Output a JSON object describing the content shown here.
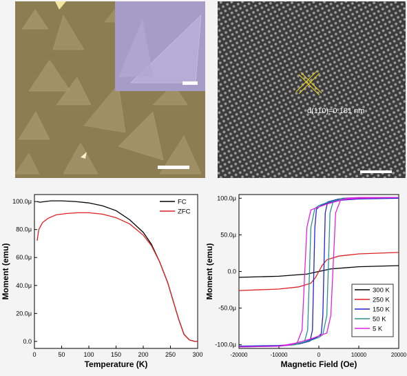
{
  "images": {
    "optical": {
      "name": "optical-micrograph"
    },
    "hrtem": {
      "name": "hrtem-lattice-image",
      "annotation": "d(110)=0.181 nm"
    }
  },
  "chart_data": [
    {
      "type": "line",
      "xlabel": "Temperature (K)",
      "ylabel": "Moment (emu)",
      "xlim": [
        0,
        300
      ],
      "ylim": [
        -5,
        105
      ],
      "xticks": [
        0,
        50,
        100,
        150,
        200,
        250,
        300
      ],
      "yticks": [
        0,
        20,
        40,
        60,
        80,
        100
      ],
      "ytick_labels": [
        "0.0",
        "20.0μ",
        "40.0μ",
        "60.0μ",
        "80.0μ",
        "100.0μ"
      ],
      "legend_position": "top-right",
      "series": [
        {
          "name": "FC",
          "color": "#000000",
          "x": [
            5,
            10,
            20,
            30,
            50,
            75,
            100,
            125,
            150,
            175,
            200,
            215,
            230,
            245,
            255,
            265,
            275,
            285,
            295,
            300
          ],
          "y": [
            100,
            99.5,
            100,
            100.5,
            100.5,
            100,
            99,
            97,
            93.5,
            87,
            78,
            69.5,
            57,
            42,
            29,
            16,
            5,
            1,
            0,
            0
          ]
        },
        {
          "name": "ZFC",
          "color": "#e02020",
          "x": [
            5,
            8,
            15,
            25,
            40,
            60,
            80,
            100,
            125,
            150,
            175,
            200,
            215,
            230,
            245,
            255,
            265,
            275,
            285,
            295,
            300
          ],
          "y": [
            72,
            80,
            85,
            88,
            90.5,
            91.5,
            92,
            92,
            91,
            88.5,
            84,
            76,
            68.5,
            57,
            42,
            29,
            16,
            5,
            1,
            0,
            0
          ]
        }
      ]
    },
    {
      "type": "line",
      "xlabel": "Magnetic Field (Oe)",
      "ylabel": "Moment (emu)",
      "xlim": [
        -20000,
        20000
      ],
      "ylim": [
        -105,
        105
      ],
      "xticks": [
        -20000,
        -10000,
        0,
        10000,
        20000
      ],
      "xtick_labels": [
        "-20000",
        "-10000",
        "0",
        "10000",
        "20000"
      ],
      "yticks": [
        -100,
        -50,
        0,
        50,
        100
      ],
      "ytick_labels": [
        "-100.0μ",
        "-50.0μ",
        "0.0",
        "50.0μ",
        "100.0μ"
      ],
      "legend_position": "bottom-right",
      "series": [
        {
          "name": "300 K",
          "color": "#000000",
          "x": [
            -20000,
            -10000,
            -3000,
            0,
            3000,
            10000,
            20000
          ],
          "y": [
            -8,
            -6.5,
            -3.5,
            0,
            3.5,
            6.5,
            8
          ]
        },
        {
          "name": "250 K",
          "color": "#e02020",
          "x": [
            -20000,
            -10000,
            -5000,
            -2000,
            -800,
            0,
            800,
            2000,
            5000,
            10000,
            20000
          ],
          "y": [
            -26,
            -24,
            -21,
            -16,
            -8,
            0,
            8,
            16,
            21,
            24,
            26
          ]
        },
        {
          "name": "150 K",
          "color": "#2020d0",
          "upper": {
            "x": [
              20000,
              10000,
              5000,
              2000,
              600,
              0,
              -600,
              -1000,
              -1600,
              -2200,
              -5000,
              -10000,
              -20000
            ],
            "y": [
              100,
              99,
              97,
              93,
              90,
              88,
              85,
              60,
              -80,
              -95,
              -99,
              -101,
              -102
            ]
          },
          "lower": {
            "x": [
              -20000,
              -10000,
              -5000,
              -2000,
              -600,
              0,
              600,
              1000,
              1600,
              2200,
              5000,
              10000,
              20000
            ],
            "y": [
              -102,
              -101,
              -99,
              -93,
              -90,
              -88,
              -85,
              -60,
              80,
              95,
              99,
              100,
              100
            ]
          }
        },
        {
          "name": "50 K",
          "color": "#2a9090",
          "upper": {
            "x": [
              20000,
              10000,
              5000,
              2000,
              0,
              -1000,
              -2000,
              -2800,
              -3600,
              -6000,
              -10000,
              -20000
            ],
            "y": [
              101,
              100,
              98,
              94,
              90,
              86,
              60,
              -80,
              -96,
              -100,
              -102,
              -103
            ]
          },
          "lower": {
            "x": [
              -20000,
              -10000,
              -5000,
              -2000,
              0,
              1000,
              2000,
              2800,
              3600,
              6000,
              10000,
              20000
            ],
            "y": [
              -103,
              -102,
              -98,
              -94,
              -90,
              -86,
              -60,
              80,
              96,
              100,
              101,
              101
            ]
          }
        },
        {
          "name": "5 K",
          "color": "#e020e0",
          "upper": {
            "x": [
              20000,
              10000,
              6000,
              2000,
              0,
              -2000,
              -3000,
              -4200,
              -5400,
              -7000,
              -10000,
              -20000
            ],
            "y": [
              101,
              100,
              98,
              92,
              88,
              84,
              60,
              -80,
              -97,
              -100,
              -102,
              -103
            ]
          },
          "lower": {
            "x": [
              -20000,
              -10000,
              -6000,
              -2000,
              0,
              2000,
              3000,
              4200,
              5400,
              7000,
              10000,
              20000
            ],
            "y": [
              -103,
              -102,
              -98,
              -92,
              -88,
              -84,
              -60,
              80,
              97,
              100,
              101,
              101
            ]
          }
        }
      ]
    }
  ]
}
